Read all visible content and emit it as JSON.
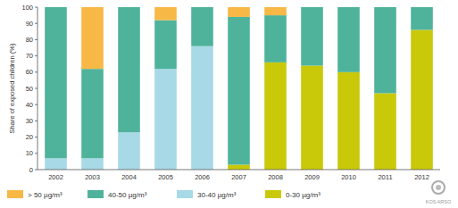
{
  "chart_data": {
    "type": "bar",
    "stacked": true,
    "y_label": "Share of exposed children (%)",
    "annotations": [
      "KOS ARSO"
    ],
    "categories": [
      "2002",
      "2003",
      "2004",
      "2005",
      "2006",
      "2007",
      "2008",
      "2009",
      "2010",
      "2011",
      "2012"
    ],
    "series": [
      {
        "name": "> 50 µg/m³",
        "color": "#f7b845",
        "values": [
          0,
          38,
          0,
          8,
          0,
          6,
          5,
          0,
          0,
          0,
          0
        ]
      },
      {
        "name": "40-50 µg/m³",
        "color": "#4fb39b",
        "values": [
          93,
          55,
          77,
          30,
          24,
          91,
          29,
          36,
          40,
          53,
          14
        ]
      },
      {
        "name": "30-40 µg/m³",
        "color": "#a7d9e6",
        "values": [
          7,
          7,
          23,
          62,
          76,
          0,
          0,
          0,
          0,
          0,
          0
        ]
      },
      {
        "name": "0-30 µg/m³",
        "color": "#c9c90a",
        "values": [
          0,
          0,
          0,
          0,
          0,
          3,
          66,
          64,
          60,
          47,
          86
        ]
      }
    ],
    "ylim": [
      0,
      100
    ],
    "yticks": [
      0,
      10,
      20,
      30,
      40,
      50,
      60,
      70,
      80,
      90,
      100
    ],
    "grid": false,
    "legend": "bottom"
  }
}
